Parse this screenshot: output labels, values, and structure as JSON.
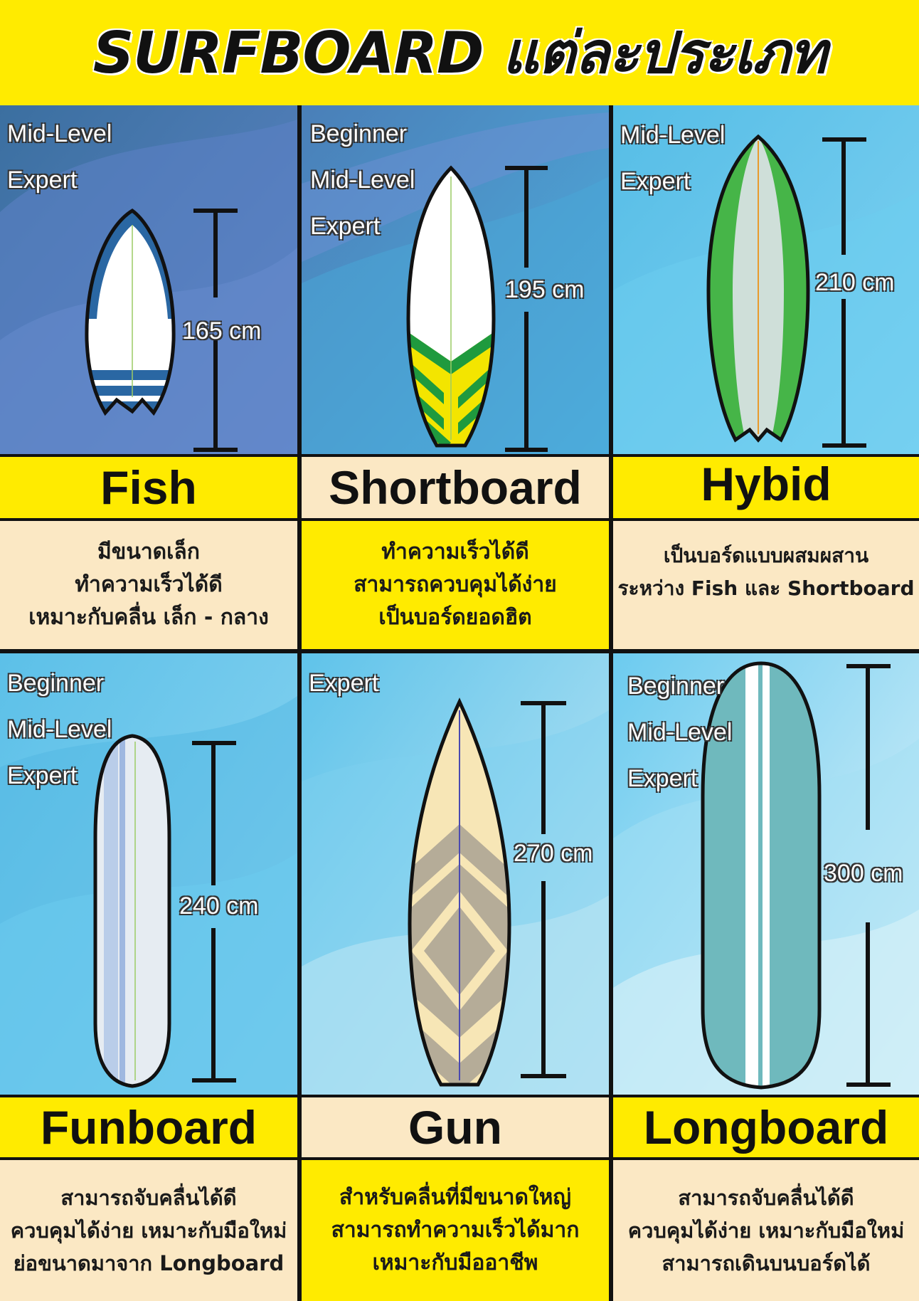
{
  "title": "SURFBOARD แต่ละประเภท",
  "boards": [
    {
      "name": "Fish",
      "levels": [
        "Mid-Level",
        "Expert"
      ],
      "length": "165 cm",
      "desc": [
        "มีขนาดเล็ก",
        "ทำความเร็วได้ดี",
        "เหมาะกับคลื่น เล็ก - กลาง"
      ],
      "name_bg": "#ffeb00",
      "desc_bg": "#fbe8c4"
    },
    {
      "name": "Shortboard",
      "levels": [
        "Beginner",
        "Mid-Level",
        "Expert"
      ],
      "length": "195 cm",
      "desc": [
        "ทำความเร็วได้ดี",
        "สามารถควบคุมได้ง่าย",
        "เป็นบอร์ดยอดฮิต"
      ],
      "name_bg": "#fbe8c4",
      "desc_bg": "#ffeb00"
    },
    {
      "name": "Hybid",
      "levels": [
        "Mid-Level",
        "Expert"
      ],
      "length": "210 cm",
      "desc": [
        "เป็นบอร์ดแบบผสมผสาน",
        "ระหว่าง Fish และ  Shortboard"
      ],
      "name_bg": "#ffeb00",
      "desc_bg": "#fbe8c4"
    },
    {
      "name": "Funboard",
      "levels": [
        "Beginner",
        "Mid-Level",
        "Expert"
      ],
      "length": "240 cm",
      "desc": [
        "สามารถจับคลื่นได้ดี",
        "ควบคุมได้ง่าย เหมาะกับมือใหม่",
        "ย่อขนาดมาจาก Longboard"
      ],
      "name_bg": "#ffeb00",
      "desc_bg": "#fbe8c4"
    },
    {
      "name": "Gun",
      "levels": [
        "Expert"
      ],
      "length": "270 cm",
      "desc": [
        "สำหรับคลื่นที่มีขนาดใหญ่",
        "สามารถทำความเร็วได้มาก",
        "เหมาะกับมืออาชีพ"
      ],
      "name_bg": "#fbe8c4",
      "desc_bg": "#ffeb00"
    },
    {
      "name": "Longboard",
      "levels": [
        "Beginner",
        "Mid-Level",
        "Expert"
      ],
      "length": "300 cm",
      "desc": [
        "สามารถจับคลื่นได้ดี",
        "ควบคุมได้ง่าย เหมาะกับมือใหม่",
        "สามารถเดินบนบอร์ดได้"
      ],
      "name_bg": "#ffeb00",
      "desc_bg": "#fbe8c4"
    }
  ]
}
